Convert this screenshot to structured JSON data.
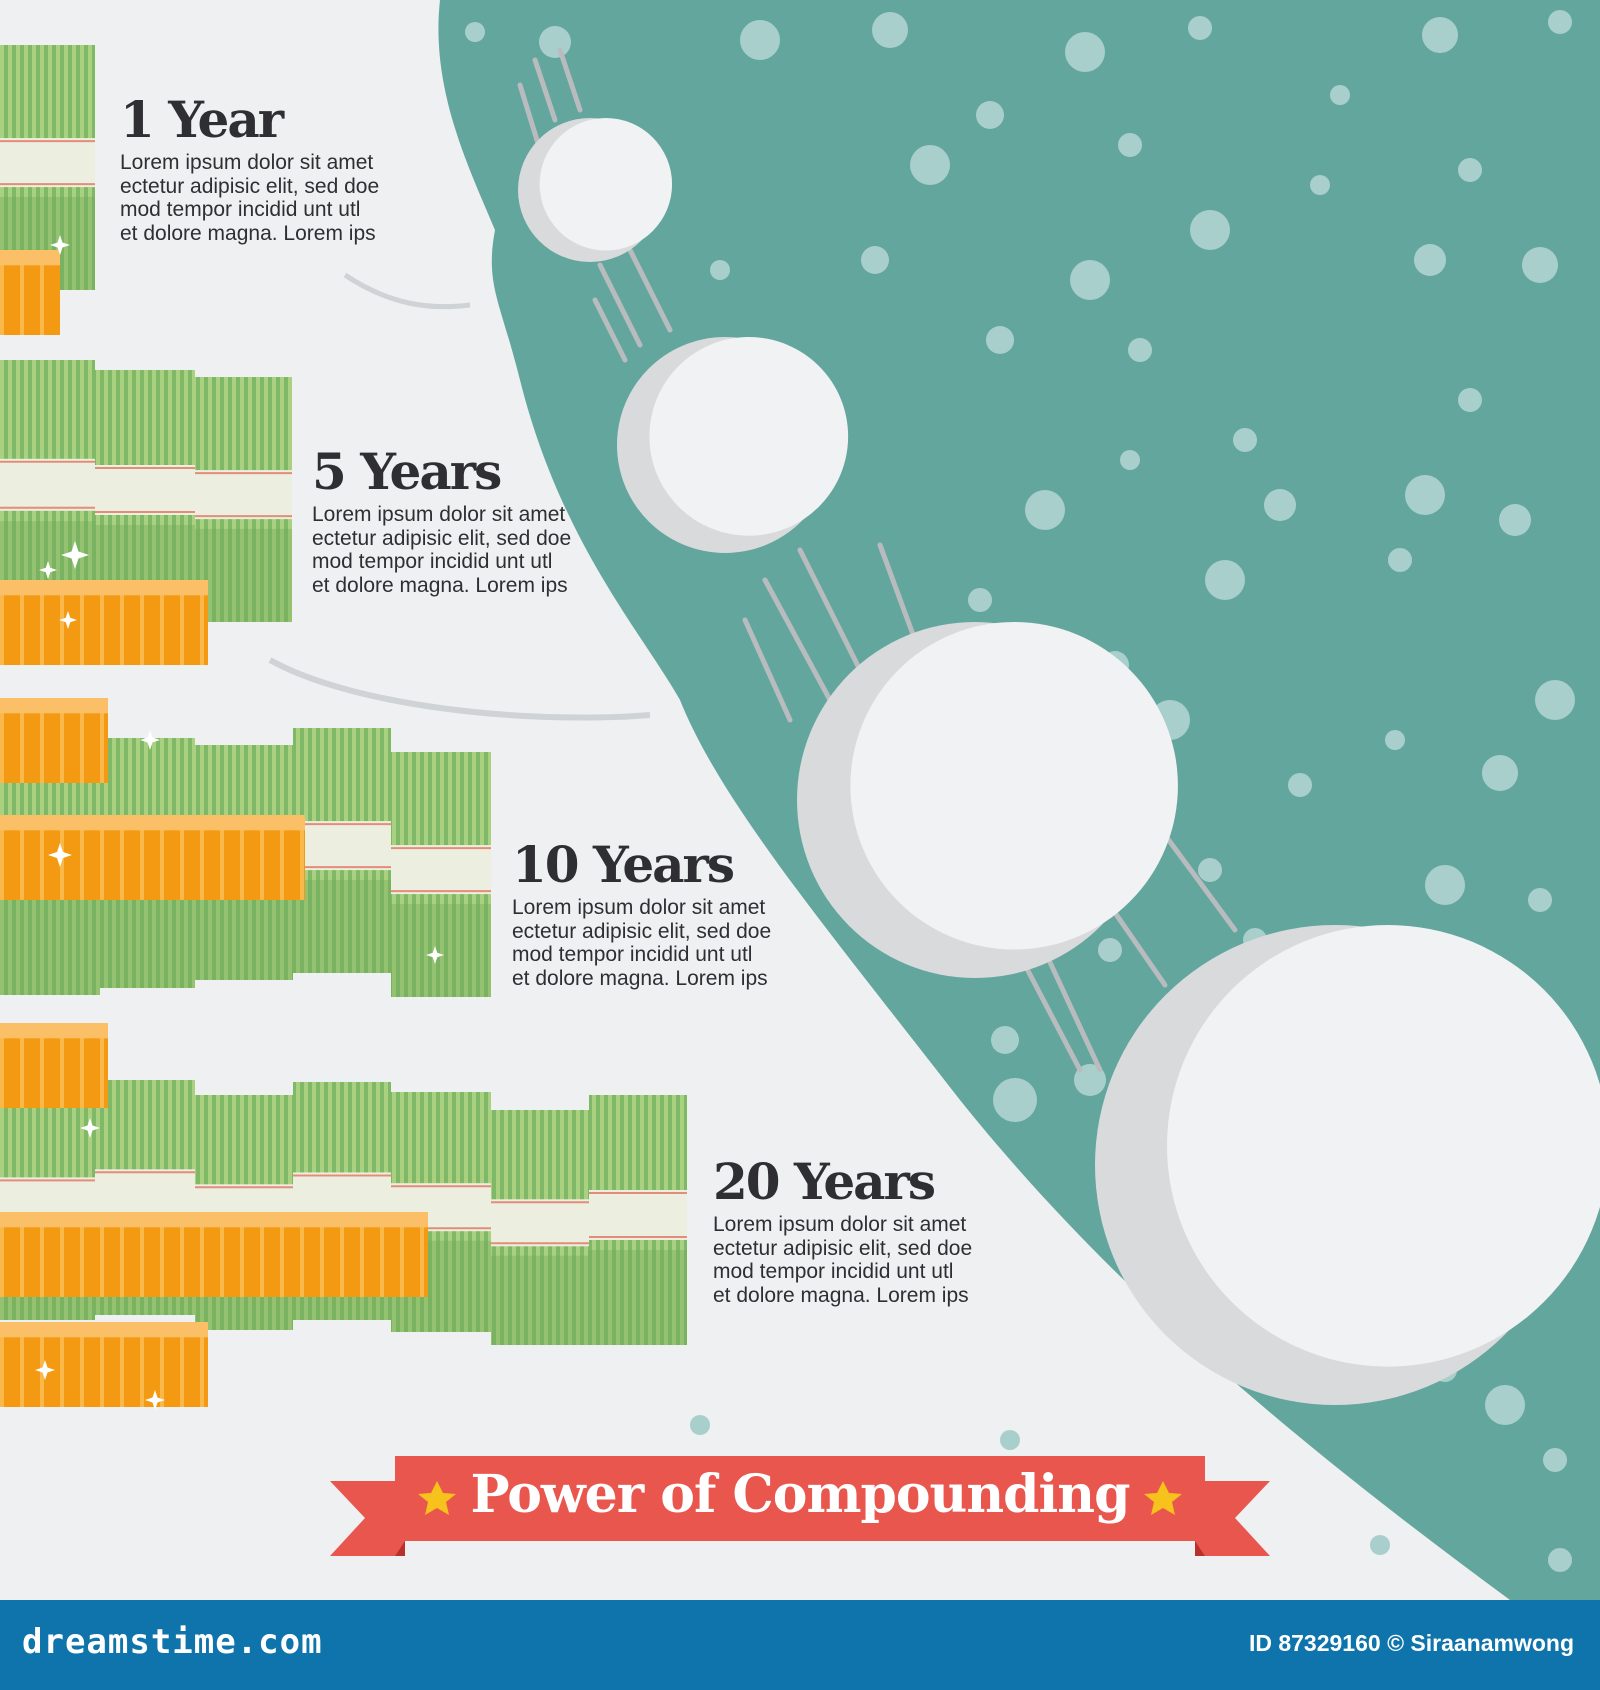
{
  "title": "Power of Compounding",
  "milestones": [
    {
      "label": "1 Year",
      "body": [
        "Lorem ipsum dolor sit amet",
        "ectetur adipisic elit, sed doe",
        "mod tempor  incidid unt utl",
        "et dolore  magna. Lorem ips"
      ]
    },
    {
      "label": "5 Years",
      "body": [
        "Lorem ipsum dolor sit amet",
        "ectetur adipisic elit, sed doe",
        "mod tempor  incidid unt utl",
        "et dolore  magna. Lorem ips"
      ]
    },
    {
      "label": "10 Years",
      "body": [
        "Lorem ipsum dolor sit amet",
        "ectetur adipisic elit, sed doe",
        "mod tempor  incidid unt utl",
        "et dolore  magna. Lorem ips"
      ]
    },
    {
      "label": "20 Years",
      "body": [
        "Lorem ipsum dolor sit amet",
        "ectetur adipisic elit, sed doe",
        "mod tempor  incidid unt utl",
        "et dolore  magna. Lorem ips"
      ]
    }
  ],
  "footer": {
    "site": "dreamstime.com",
    "credit": "ID 87329160 © Siraanamwong"
  },
  "colors": {
    "background": "#eef0f1",
    "slope": "#63a69e",
    "snowball": "#f0f2f3",
    "snowball_shade": "#d8dadc",
    "bill_green": "#7fb866",
    "bill_light": "#a9d17f",
    "bill_band": "#ecefe0",
    "coin_orange": "#f39a12",
    "coin_light": "#fbb84a",
    "ribbon": "#e9564d",
    "ribbon_dark": "#b8312c",
    "star": "#f7c21b",
    "footer": "#0f74ab"
  },
  "icons": [
    "snowball-icon",
    "money-stack-icon",
    "coin-stack-icon",
    "star-icon",
    "sparkle-icon"
  ]
}
